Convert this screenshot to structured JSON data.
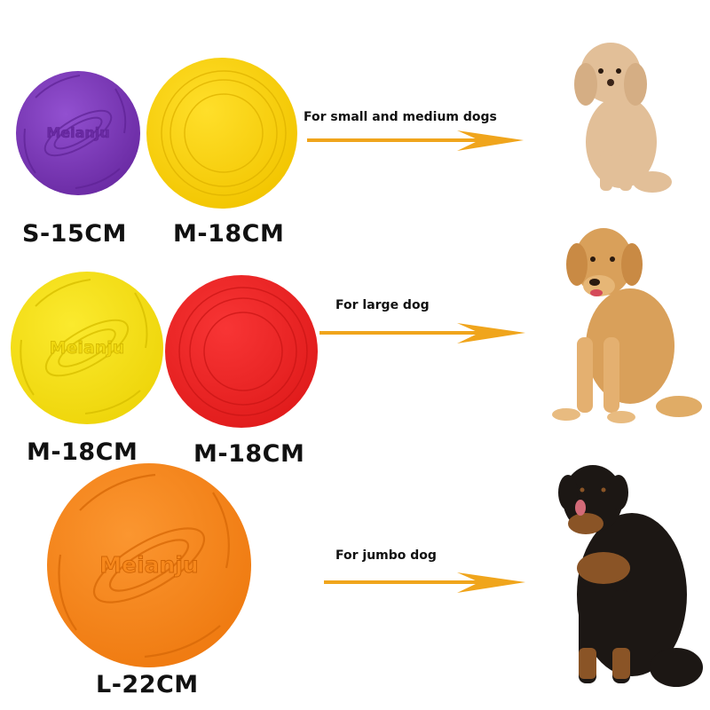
{
  "brand_logo": "Meianju",
  "colors": {
    "purple": "#7a35b5",
    "yellow": "#fbd40a",
    "lemon": "#f7e416",
    "red": "#ee2424",
    "orange": "#f7881c",
    "arrow": "#f0a51c"
  },
  "rows": [
    {
      "discs": [
        {
          "size_label": "S-15CM",
          "color": "purple",
          "logo": true
        },
        {
          "size_label": "M-18CM",
          "color": "yellow",
          "logo": false
        }
      ],
      "caption": "For small and medium dogs",
      "dog": "poodle"
    },
    {
      "discs": [
        {
          "size_label": "M-18CM",
          "color": "lemon",
          "logo": true
        },
        {
          "size_label": "M-18CM",
          "color": "red",
          "logo": false
        }
      ],
      "caption": "For large dog",
      "dog": "golden-retriever"
    },
    {
      "discs": [
        {
          "size_label": "L-22CM",
          "color": "orange",
          "logo": true
        }
      ],
      "caption": "For jumbo dog",
      "dog": "rottweiler"
    }
  ]
}
